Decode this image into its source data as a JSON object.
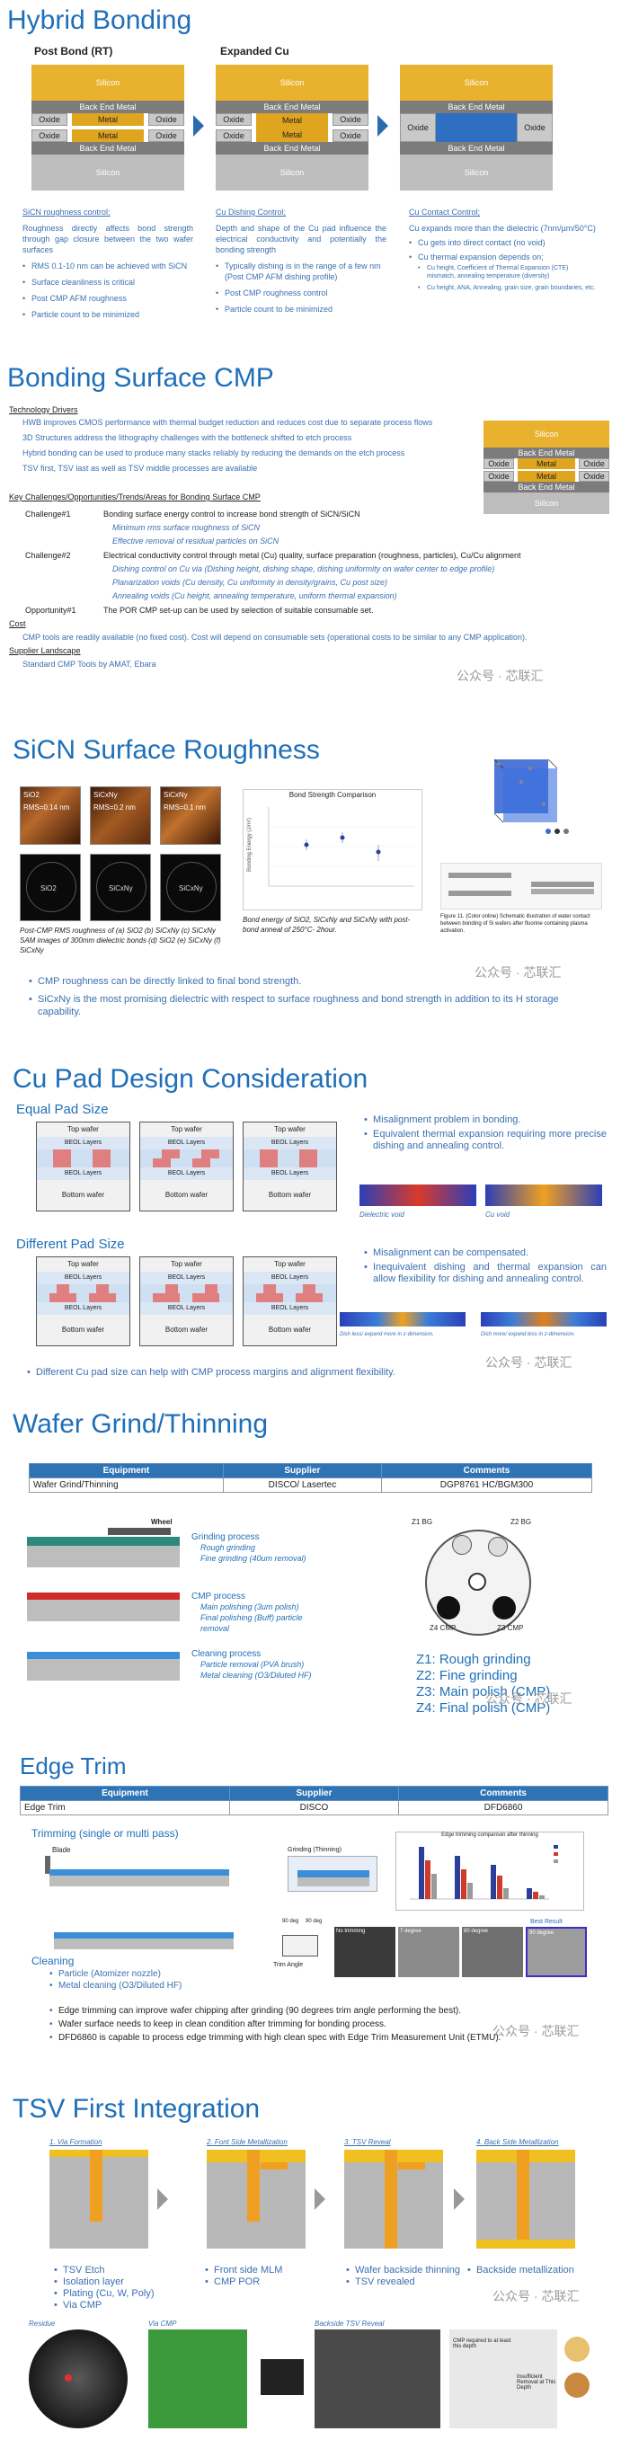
{
  "hybrid": {
    "title": "Hybrid Bonding",
    "col1": {
      "heading": "Post Bond (RT)",
      "caption": "SiCN roughness control;",
      "desc": "Roughness directly affects bond strength through gap closure between the two wafer surfaces",
      "bullets": [
        "RMS 0.1-10 nm can be achieved with SiCN",
        "Surface cleanliness is critical",
        "Post CMP AFM roughness",
        "Particle count to be minimized"
      ]
    },
    "col2": {
      "heading": "Expanded Cu",
      "caption": "Cu Dishing Control;",
      "desc": "Depth and shape of the Cu pad influence the electrical conductivity and potentially the bonding strength",
      "bullets": [
        "Typically dishing is in the range of a few nm (Post CMP AFM dishing profile)",
        "Post CMP roughness control",
        "Particle count to be minimized"
      ]
    },
    "col3": {
      "caption": "Cu Contact Control;",
      "desc": "Cu expands more than the dielectric (7nm/µm/50°C)",
      "bullets": [
        "Cu gets into direct contact (no void)",
        "Cu thermal expansion depends on;",
        "Cu height, Coefficient of Thermal Expansion (CTE) mismatch, annealing temperature (diversity)",
        "Cu height, ANA, Annealing, grain size, grain boundaries, etc."
      ]
    },
    "labels": {
      "silicon": "Silicon",
      "bem": "Back End Metal",
      "metal": "Metal",
      "oxide": "Oxide"
    }
  },
  "cmp": {
    "title": "Bonding Surface CMP",
    "tech_drivers": "Technology Drivers",
    "tech_lines": [
      "HWB improves CMOS performance with thermal budget reduction and reduces cost due to separate process flows",
      "3D Structures address the lithography challenges with the bottleneck shifted to etch process",
      "Hybrid bonding can be used to produce many stacks reliably by reducing the demands on the etch process",
      "TSV first, TSV last as well as TSV middle processes are available"
    ],
    "key": "Key Challenges/Opportunities/Trends/Areas for Bonding Surface CMP",
    "ch1_label": "Challenge#1",
    "ch1": "Bonding surface energy control to increase bond strength of SiCN/SiCN",
    "ch1_sub": [
      "Minimum rms surface roughness of SiCN",
      "Effective removal of residual particles on SiCN"
    ],
    "ch2_label": "Challenge#2",
    "ch2": "Electrical conductivity control through metal (Cu) quality, surface preparation (roughness, particles), Cu/Cu alignment",
    "ch2_sub": [
      "Dishing control on Cu via (Dishing height, dishing shape, dishing uniformity on wafer center to edge profile)",
      "Planarization voids (Cu density, Cu uniformity in density/grains, Cu post size)",
      "Annealing voids (Cu height, annealing temperature, uniform thermal expansion)"
    ],
    "op1_label": "Opportunity#1",
    "op1": "The POR CMP set-up can be used by selection of suitable consumable set.",
    "cost": "Cost",
    "cost_line": "CMP tools are readily available (no fixed cost). Cost will depend on consumable sets (operational costs to be similar to any CMP application).",
    "supplier": "Supplier Landscape",
    "supplier_line": "Standard CMP Tools by AMAT, Ebara"
  },
  "sicn": {
    "title": "SiCN Surface Roughness",
    "afm_labels": [
      "SiO2",
      "SiCxNy",
      "SiCxNy"
    ],
    "afm_rms": [
      "RMS=0.14 nm",
      "RMS=0.2 nm",
      "RMS=0.1 nm"
    ],
    "wafer_labels": [
      "SiO2",
      "SiCxNy",
      "SiCxNy"
    ],
    "caption_left": "Post-CMP RMS roughness of (a) SiO2 (b) SiCxNy (c) SiCxNy SAM images of 300mm dielectric bonds (d) SiO2 (e) SiCxNy (f) SiCxNy",
    "chart_title": "Bond Strength Comparison",
    "chart_ylabel": "Bonding Energy (J/m²)",
    "caption_mid": "Bond energy of SiO2, SiCxNy and SiCxNy with post- bond anneal of 250°C- 2hour.",
    "caption_right": "Figure 11. (Color online) Schematic illustration of water contact between bonding of Si wafers after fluorine containing plasma activation.",
    "bullets": [
      "CMP roughness can be directly linked to final bond strength.",
      "SiCxNy is the most promising dielectric with respect to surface roughness and bond strength in addition to its H storage capability."
    ]
  },
  "cupad": {
    "title": "Cu Pad Design Consideration",
    "equal": "Equal Pad Size",
    "different": "Different Pad Size",
    "top_wafer": "Top wafer",
    "bottom_wafer": "Bottom wafer",
    "beol": "BEOL Layers",
    "eq_bullets": [
      "Misalignment problem in bonding.",
      "Equivalent thermal expansion requiring more precise dishing and annealing control."
    ],
    "diff_bullets": [
      "Misalignment can be compensated.",
      "Inequivalent dishing and thermal expansion can allow flexibility for dishing and annealing control."
    ],
    "void_labels": [
      "Dielectric void",
      "Cu void"
    ],
    "dish_labels": [
      "Dish less/ expand more in z-dimension.",
      "Dish more/ expand less in z-dimension."
    ],
    "footer": "Different Cu pad size can help with CMP process margins and alignment flexibility."
  },
  "grind": {
    "title": "Wafer Grind/Thinning",
    "headers": [
      "Equipment",
      "Supplier",
      "Comments"
    ],
    "row": [
      "Wafer Grind/Thinning",
      "DISCO/ Lasertec",
      "DGP8761 HC/BGM300"
    ],
    "wheel": "Wheel",
    "steps": [
      {
        "name": "Grinding process",
        "subs": [
          "Rough grinding",
          "Fine grinding (40um removal)"
        ]
      },
      {
        "name": "CMP process",
        "subs": [
          "Main polishing (3um polish)",
          "Final polishing (Buff) particle removal"
        ]
      },
      {
        "name": "Cleaning process",
        "subs": [
          "Particle removal (PVA brush)",
          "Metal cleaning (O3/Diluted HF)"
        ]
      }
    ],
    "zones": [
      "Z1 BG",
      "Z2 BG",
      "Z4 CMP",
      "Z3 CMP"
    ],
    "legend": [
      "Z1: Rough grinding",
      "Z2: Fine grinding",
      "Z3: Main polish (CMP)",
      "Z4: Final polish (CMP)"
    ]
  },
  "edge": {
    "title": "Edge Trim",
    "headers": [
      "Equipment",
      "Supplier",
      "Comments"
    ],
    "row": [
      "Edge Trim",
      "DISCO",
      "DFD6860"
    ],
    "trimming": "Trimming (single or multi pass)",
    "blade": "Blade",
    "cleaning": "Cleaning",
    "clean_bullets": [
      "Particle (Atomizer nozzle)",
      "Metal cleaning (O3/Diluted HF)"
    ],
    "grinding_label": "Grinding (Thinning)",
    "chart_title": "Edge trimming comparison after thinning",
    "trim_angle": "Trim Angle",
    "angles": [
      "90 deg",
      "90 deg"
    ],
    "best": "Best Result",
    "photo_labels": [
      "No trimming",
      "7 degree",
      "80 degree",
      "90 degree"
    ],
    "bullets": [
      "Edge trimming can improve wafer chipping after grinding (90 degrees trim angle performing the best).",
      "Wafer surface needs to keep in clean condition after trimming for bonding process.",
      "DFD6860 is capable to process edge trimming with high clean spec with Edge Trim Measurement Unit (ETMU)."
    ]
  },
  "tsv": {
    "title": "TSV First Integration",
    "steps": [
      "1. Via Formation",
      "2. Font Side Metallization",
      "3. TSV Reveal",
      "4. Back Side Metallization"
    ],
    "col_bullets": [
      [
        "TSV Etch",
        "Isolation layer",
        "Plating (Cu, W, Poly)",
        "Via CMP"
      ],
      [
        "Front side MLM",
        "CMP POR"
      ],
      [
        "Wafer backside thinning",
        "TSV revealed"
      ],
      [
        "Backside metallization"
      ]
    ],
    "photo_labels": [
      "Residue",
      "Via CMP",
      "Backside TSV Reveal"
    ],
    "reveal_notes": [
      "CMP required to at least this depth",
      "Insufficient Removal at This Depth"
    ]
  },
  "watermark": "公众号 · 芯联汇",
  "colors": {
    "accent": "#1f6fb8",
    "silicon": "#e8b22e",
    "bem": "#7c7c7c",
    "table_head": "#2e74b5"
  }
}
